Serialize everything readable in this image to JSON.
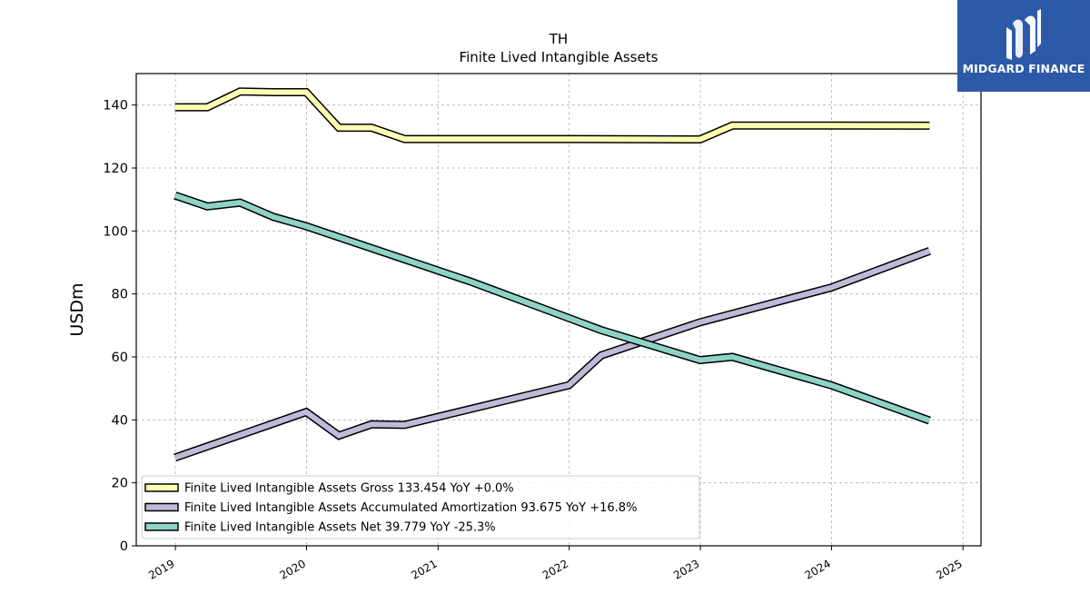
{
  "chart_data": {
    "type": "line",
    "title": "TH",
    "subtitle": "Finite Lived Intangible Assets",
    "ylabel": "USDm",
    "xlabel": "",
    "ylim": [
      0,
      150
    ],
    "xlim": [
      "2018-09-14",
      "2025-02-20"
    ],
    "yticks": [
      0,
      20,
      40,
      60,
      80,
      100,
      120,
      140
    ],
    "xticks": [
      "2019",
      "2020",
      "2021",
      "2022",
      "2023",
      "2024",
      "2025"
    ],
    "grid": true,
    "legend_position": "lower-left",
    "series": [
      {
        "name": "Finite Lived Intangible Assets Gross",
        "legend": "Finite Lived Intangible Assets Gross  133.454 YoY +0.0%",
        "color": "#ffffb3",
        "points": [
          [
            "2018-12-31",
            139.3
          ],
          [
            "2019-03-31",
            139.3
          ],
          [
            "2019-06-30",
            144.3
          ],
          [
            "2019-09-30",
            144.1
          ],
          [
            "2019-12-31",
            144.1
          ],
          [
            "2020-03-31",
            132.8
          ],
          [
            "2020-06-30",
            132.8
          ],
          [
            "2020-09-30",
            129.2
          ],
          [
            "2020-12-31",
            129.2
          ],
          [
            "2021-12-31",
            129.2
          ],
          [
            "2022-12-31",
            129.1
          ],
          [
            "2023-03-31",
            133.5
          ],
          [
            "2023-12-31",
            133.5
          ],
          [
            "2024-09-30",
            133.454
          ]
        ]
      },
      {
        "name": "Finite Lived Intangible Assets Accumulated Amortization",
        "legend": "Finite Lived Intangible Assets Accumulated Amortization  93.675 YoY +16.8%",
        "color": "#bebada",
        "points": [
          [
            "2018-12-31",
            28.0
          ],
          [
            "2019-12-31",
            42.5
          ],
          [
            "2020-03-31",
            35.0
          ],
          [
            "2020-06-30",
            38.6
          ],
          [
            "2020-09-30",
            38.4
          ],
          [
            "2021-12-31",
            51.0
          ],
          [
            "2022-03-31",
            60.5
          ],
          [
            "2022-12-31",
            71.0
          ],
          [
            "2023-12-31",
            82.0
          ],
          [
            "2024-09-30",
            93.675
          ]
        ]
      },
      {
        "name": "Finite Lived Intangible Assets Net",
        "legend": "Finite Lived Intangible Assets Net  39.779 YoY -25.3%",
        "color": "#8dd3c7",
        "points": [
          [
            "2018-12-31",
            111.3
          ],
          [
            "2019-03-31",
            107.8
          ],
          [
            "2019-06-30",
            109.0
          ],
          [
            "2019-09-30",
            104.5
          ],
          [
            "2019-12-31",
            101.5
          ],
          [
            "2021-03-31",
            84.0
          ],
          [
            "2022-03-31",
            68.5
          ],
          [
            "2022-12-31",
            59.0
          ],
          [
            "2023-03-31",
            60.0
          ],
          [
            "2023-12-31",
            51.0
          ],
          [
            "2024-09-30",
            39.779
          ]
        ]
      }
    ]
  },
  "logo": {
    "text": "MIDGARD FINANCE"
  }
}
